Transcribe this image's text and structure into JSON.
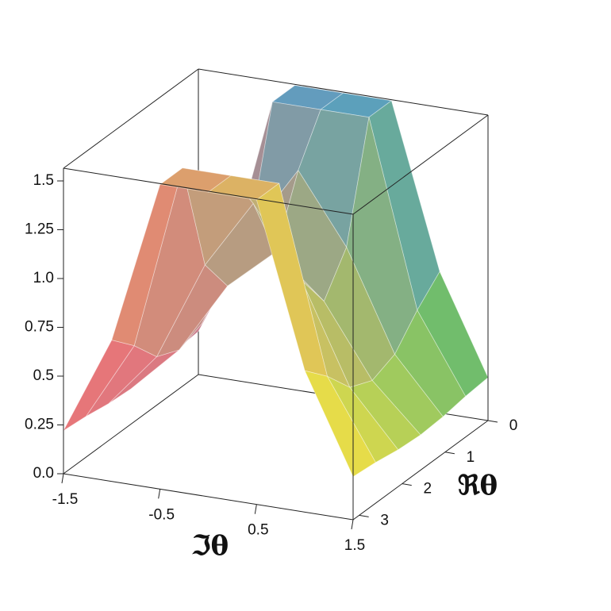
{
  "chart_data": {
    "type": "surface",
    "x_label": "ℑθ",
    "y_label": "ℜθ",
    "xlim": [
      -1.5,
      1.5
    ],
    "ylim": [
      0,
      3.1416
    ],
    "zlim": [
      0,
      1.565
    ],
    "xticks": [
      -1.5,
      -0.5,
      0.5,
      1.5
    ],
    "yticks": [
      0,
      1,
      2,
      3
    ],
    "zticks": [
      {
        "value": 0,
        "label": "0.0"
      },
      0.25,
      0.5,
      0.75,
      {
        "value": 1,
        "label": "1.0"
      },
      1.25,
      1.5
    ],
    "colormap": [
      "#d27a92",
      "#5cc06c",
      "#e86a7c",
      "#f2ea40"
    ],
    "peak_color": "#3c9ee0",
    "grid": {
      "x": [
        -1.5,
        -1,
        -0.5,
        0,
        0.5,
        1,
        1.5
      ],
      "y": [
        0,
        0.5236,
        1.0472,
        1.5708,
        2.0944,
        2.618,
        3.1416
      ],
      "z": [
        [
          0.2206,
          0.7241,
          1.56,
          1.56,
          1.56,
          0.7241,
          0.2206
        ],
        [
          0.2091,
          0.6106,
          1.56,
          1.56,
          1.56,
          0.6106,
          0.2091
        ],
        [
          0.1893,
          0.4694,
          0.979,
          1.3333,
          0.979,
          0.4694,
          0.1893
        ],
        [
          0.1807,
          0.4199,
          0.7865,
          1,
          0.7865,
          0.4199,
          0.1807
        ],
        [
          0.1893,
          0.4694,
          0.979,
          1.3333,
          0.979,
          0.4694,
          0.1893
        ],
        [
          0.2091,
          0.6106,
          1.56,
          1.56,
          1.56,
          0.6106,
          0.2091
        ],
        [
          0.2206,
          0.7241,
          1.56,
          1.56,
          1.56,
          0.7241,
          0.2206
        ]
      ]
    }
  }
}
